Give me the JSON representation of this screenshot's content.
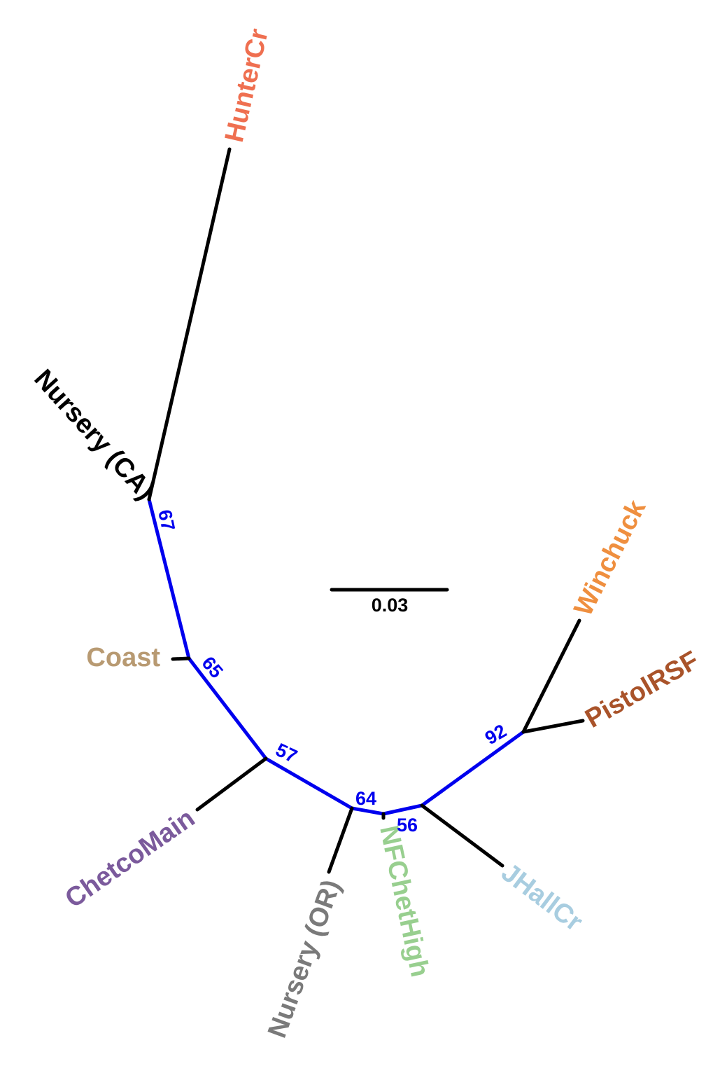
{
  "colors": {
    "backbone": "#0000ee",
    "terminal_branch": "#000000",
    "support_text": "#0000ee",
    "scale": "#000000"
  },
  "tips": [
    {
      "id": "huntercr",
      "label": "HunterCr",
      "color": "#ef6f50"
    },
    {
      "id": "nursery-ca",
      "label": "Nursery (CA)",
      "color": "#000000"
    },
    {
      "id": "coast",
      "label": "Coast",
      "color": "#b89a72"
    },
    {
      "id": "chetcomain",
      "label": "ChetcoMain",
      "color": "#7b5a9c"
    },
    {
      "id": "nursery-or",
      "label": "Nursery (OR)",
      "color": "#7a7a7a"
    },
    {
      "id": "nfchethigh",
      "label": "NFChetHigh",
      "color": "#98cf8f"
    },
    {
      "id": "jhallcr",
      "label": "JHallCr",
      "color": "#a8cde0"
    },
    {
      "id": "pistolrsf",
      "label": "PistolRSF",
      "color": "#a9532a"
    },
    {
      "id": "winchuck",
      "label": "Winchuck",
      "color": "#ef8f3f"
    }
  ],
  "support_values": [
    {
      "node": "n67",
      "value": "67"
    },
    {
      "node": "n65",
      "value": "65"
    },
    {
      "node": "n57",
      "value": "57"
    },
    {
      "node": "n64",
      "value": "64"
    },
    {
      "node": "n56",
      "value": "56"
    },
    {
      "node": "n92",
      "value": "92"
    }
  ],
  "scale_bar": {
    "label": "0.03"
  }
}
